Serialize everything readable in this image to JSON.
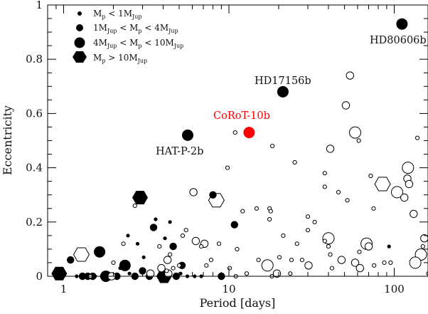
{
  "chart_data": {
    "type": "scatter",
    "title": "",
    "xlabel": "Period [days]",
    "ylabel": "Eccentricity",
    "x_scale": "log",
    "xlim": [
      0.8,
      160
    ],
    "ylim": [
      0,
      1
    ],
    "x_ticks": [
      1,
      10,
      100
    ],
    "x_tick_labels": [
      "1",
      "10",
      "100"
    ],
    "y_ticks": [
      0,
      0.2,
      0.4,
      0.6,
      0.8,
      1
    ],
    "y_tick_labels": [
      "0",
      "0.2",
      "0.4",
      "0.6",
      "0.8",
      "1"
    ],
    "grid": false,
    "legend_position": "top-left",
    "legend": [
      {
        "marker": "small-circle",
        "parts": [
          "M",
          "p",
          " < 1M",
          "Jup",
          ""
        ]
      },
      {
        "marker": "medium-circle",
        "parts": [
          "1M",
          "Jup",
          " < M",
          "p",
          " < 4M",
          "Jup"
        ]
      },
      {
        "marker": "large-circle",
        "parts": [
          "4M",
          "Jup",
          " < M",
          "p",
          " < 10M",
          "Jup"
        ]
      },
      {
        "marker": "hexagon",
        "parts": [
          "M",
          "p",
          " > 10M",
          "Jup",
          ""
        ]
      }
    ],
    "annotations": [
      {
        "text": "HD80606b"
      },
      {
        "text": "HD17156b"
      },
      {
        "text": "CoRoT-10b",
        "color": "#ff0000"
      },
      {
        "text": "HAT-P-2b"
      }
    ],
    "series": [
      {
        "mass_class": "Mp > 10 MJup",
        "filled": true,
        "marker": "hexagon",
        "points": [
          [
            0.94,
            0.01
          ],
          [
            2.9,
            0.29
          ],
          [
            4.05,
            0
          ]
        ]
      },
      {
        "mass_class": "Mp > 10 MJup",
        "filled": false,
        "marker": "hexagon",
        "points": [
          [
            1.28,
            0.08
          ],
          [
            8.4,
            0.28
          ],
          [
            85,
            0.34
          ]
        ]
      },
      {
        "mass_class": "4 MJup < Mp < 10 MJup",
        "filled": true,
        "marker": "circle",
        "points": [
          [
            5.63,
            0.52
          ],
          [
            111.4,
            0.93
          ],
          [
            21.2,
            0.68
          ],
          [
            13.24,
            0.53
          ],
          [
            1.65,
            0.09
          ],
          [
            2.35,
            0.04
          ],
          [
            1.8,
            0
          ]
        ]
      },
      {
        "mass_class": "1 MJup < Mp < 4 MJup",
        "filled": true,
        "marker": "circle",
        "points": [
          [
            8.0,
            0.3
          ],
          [
            10.8,
            0.19
          ],
          [
            4.6,
            0.11
          ],
          [
            3.5,
            0.18
          ],
          [
            1.1,
            0.06
          ],
          [
            2.1,
            0
          ],
          [
            1.3,
            0
          ],
          [
            1.5,
            0
          ],
          [
            2.7,
            0
          ],
          [
            3.3,
            0
          ],
          [
            4.8,
            0
          ],
          [
            1.9,
            0
          ],
          [
            9.0,
            0
          ],
          [
            3.0,
            0.02
          ],
          [
            5.2,
            0.04
          ],
          [
            1.4,
            0
          ]
        ]
      },
      {
        "mass_class": "Mp < 1 MJup",
        "filled": true,
        "marker": "circle",
        "points": [
          [
            1.2,
            0
          ],
          [
            1.55,
            0
          ],
          [
            2.2,
            0.03
          ],
          [
            2.5,
            0.01
          ],
          [
            3.05,
            0.07
          ],
          [
            3.6,
            0.21
          ],
          [
            4.1,
            0.14
          ],
          [
            4.4,
            0.2
          ],
          [
            5.1,
            0.01
          ],
          [
            5.6,
            0
          ],
          [
            6.2,
            0
          ],
          [
            6.8,
            0
          ],
          [
            2.45,
            0.15
          ],
          [
            93,
            0.11
          ],
          [
            2.8,
            0.12
          ],
          [
            1.7,
            0
          ]
        ]
      },
      {
        "mass_class": "4 MJup < Mp < 10 MJup",
        "filled": false,
        "marker": "circle",
        "points": [
          [
            58,
            0.53
          ],
          [
            121,
            0.4
          ],
          [
            104,
            0.31
          ],
          [
            145,
            0.08
          ],
          [
            134,
            0.05
          ],
          [
            17.1,
            0.04
          ],
          [
            68,
            0.12
          ],
          [
            40,
            0.14
          ]
        ]
      },
      {
        "mass_class": "1 MJup < Mp < 4 MJup",
        "filled": false,
        "marker": "circle",
        "points": [
          [
            51,
            0.63
          ],
          [
            54,
            0.74
          ],
          [
            41,
            0.47
          ],
          [
            115,
            0.29
          ],
          [
            120,
            0.36
          ],
          [
            123,
            0.34
          ],
          [
            131,
            0.23
          ],
          [
            152,
            0.14
          ],
          [
            6.1,
            0.31
          ],
          [
            6.3,
            0.13
          ],
          [
            7.1,
            0.12
          ],
          [
            48,
            0.06
          ],
          [
            58,
            0.05
          ],
          [
            62,
            0.03
          ],
          [
            19.5,
            0.01
          ],
          [
            30.3,
            0.04
          ],
          [
            70,
            0.11
          ],
          [
            4.25,
            0.06
          ],
          [
            3.9,
            0.03
          ],
          [
            3.35,
            0.01
          ],
          [
            1.95,
            0
          ],
          [
            4.3,
            0.01
          ]
        ]
      },
      {
        "mass_class": "Mp < 1 MJup",
        "filled": false,
        "marker": "circle",
        "points": [
          [
            10.9,
            0.53
          ],
          [
            18.3,
            0.48
          ],
          [
            61,
            0.5
          ],
          [
            138,
            0.51
          ],
          [
            9.8,
            0.4
          ],
          [
            25,
            0.42
          ],
          [
            72,
            0.37
          ],
          [
            38,
            0.38
          ],
          [
            52,
            0.28
          ],
          [
            46,
            0.31
          ],
          [
            38,
            0.33
          ],
          [
            75,
            0.25
          ],
          [
            17.6,
            0.25
          ],
          [
            17.9,
            0.24
          ],
          [
            14.7,
            0.25
          ],
          [
            30,
            0.22
          ],
          [
            33,
            0.2
          ],
          [
            12.1,
            0.24
          ],
          [
            17.6,
            0.21
          ],
          [
            5.5,
            0.17
          ],
          [
            5.25,
            0.15
          ],
          [
            8.7,
            0.12
          ],
          [
            6.8,
            0.11
          ],
          [
            11.2,
            0.1
          ],
          [
            21.3,
            0.15
          ],
          [
            20.2,
            0.07
          ],
          [
            15.1,
            0.06
          ],
          [
            25.8,
            0.12
          ],
          [
            27.7,
            0.06
          ],
          [
            30,
            0.17
          ],
          [
            38,
            0.13
          ],
          [
            40,
            0.11
          ],
          [
            41,
            0.08
          ],
          [
            42,
            0.03
          ],
          [
            61.5,
            0.09
          ],
          [
            75.5,
            0.04
          ],
          [
            23.9,
            0.06
          ],
          [
            23.5,
            0.01
          ],
          [
            10.1,
            0.03
          ],
          [
            11,
            0
          ],
          [
            7.3,
            0.04
          ],
          [
            7.8,
            0.06
          ],
          [
            12.8,
            0.01
          ],
          [
            18.2,
            0
          ],
          [
            2.0,
            0.05
          ],
          [
            2.3,
            0.12
          ],
          [
            4.4,
            0.08
          ],
          [
            3.8,
            0.11
          ],
          [
            2.7,
            0.26
          ],
          [
            1.45,
            0
          ],
          [
            4.2,
            0.02
          ],
          [
            4.6,
            0.03
          ],
          [
            5.0,
            0.04
          ],
          [
            149,
            0.11
          ],
          [
            161,
            0.01
          ],
          [
            87,
            0.05
          ],
          [
            95,
            0.05
          ]
        ]
      }
    ]
  }
}
